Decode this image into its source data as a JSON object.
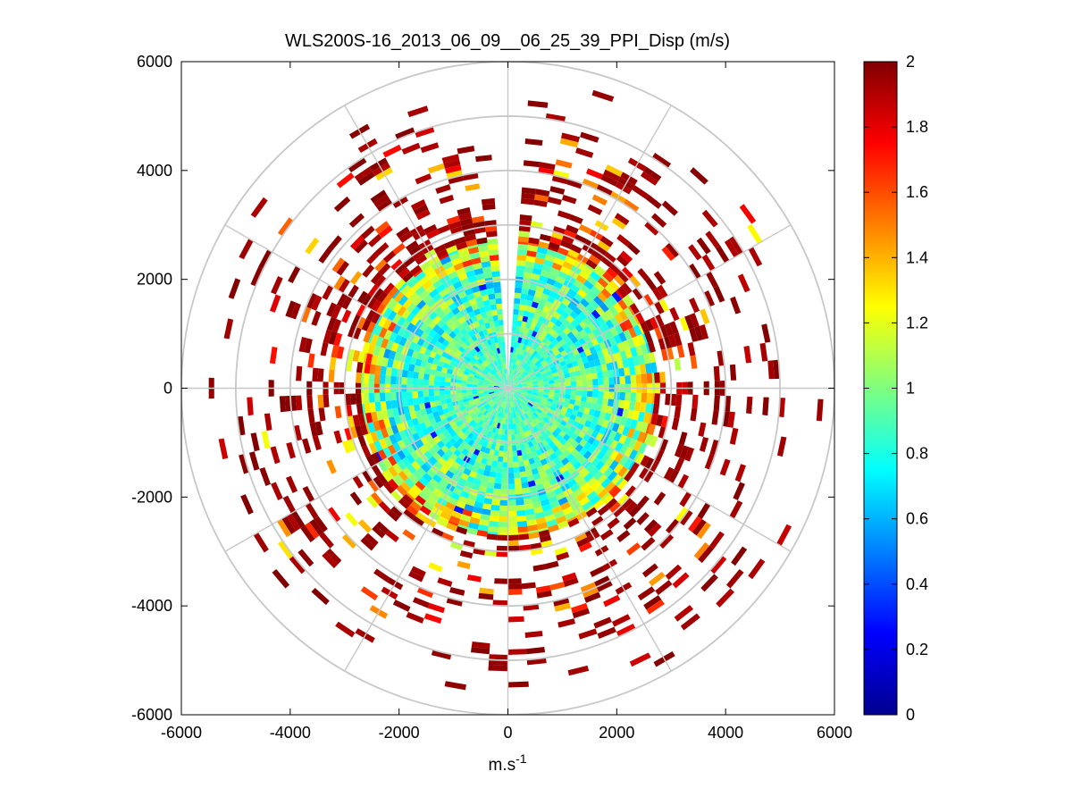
{
  "chart_data": {
    "type": "ppi-polar-heatmap",
    "title": "WLS200S-16_2013_06_09__06_25_39_PPI_Disp (m/s)",
    "xlabel": "m.s",
    "xlabel_superscript": "-1",
    "ylabel": "",
    "xlim": [
      -6000,
      6000
    ],
    "ylim": [
      -6000,
      6000
    ],
    "xticks": [
      -6000,
      -4000,
      -2000,
      0,
      2000,
      4000,
      6000
    ],
    "yticks": [
      6000,
      4000,
      2000,
      0,
      -2000,
      -4000,
      -6000
    ],
    "xtick_labels": [
      "-6000",
      "-4000",
      "-2000",
      "0",
      "2000",
      "4000",
      "6000"
    ],
    "ytick_labels": [
      "6000",
      "4000",
      "2000",
      "0",
      "-2000",
      "-4000",
      "-6000"
    ],
    "polar_grid": {
      "range_rings": [
        1000,
        2000,
        3000,
        4000,
        5000,
        6000
      ],
      "spoke_angles_deg": [
        0,
        30,
        60,
        90,
        120,
        150,
        180,
        210,
        240,
        270,
        300,
        330
      ]
    },
    "colorbar": {
      "colormap": "jet",
      "range": [
        0,
        2
      ],
      "ticks": [
        0,
        0.2,
        0.4,
        0.6,
        0.8,
        1,
        1.2,
        1.4,
        1.6,
        1.8,
        2
      ],
      "tick_labels": [
        "0",
        "0.2",
        "0.4",
        "0.6",
        "0.8",
        "1",
        "1.2",
        "1.4",
        "1.6",
        "1.8",
        "2"
      ]
    },
    "data_description": {
      "dense_core_max_range_m": 2700,
      "dense_core_value_approx": 0.9,
      "blanked_sector_azimuth_deg": [
        355,
        2
      ],
      "scattered_returns_range_m": [
        2700,
        5800
      ],
      "scattered_returns_value_approx": 1.9
    }
  },
  "colors": {
    "grid": "#c8c8c8",
    "axes": "#000000",
    "background": "#ffffff"
  }
}
